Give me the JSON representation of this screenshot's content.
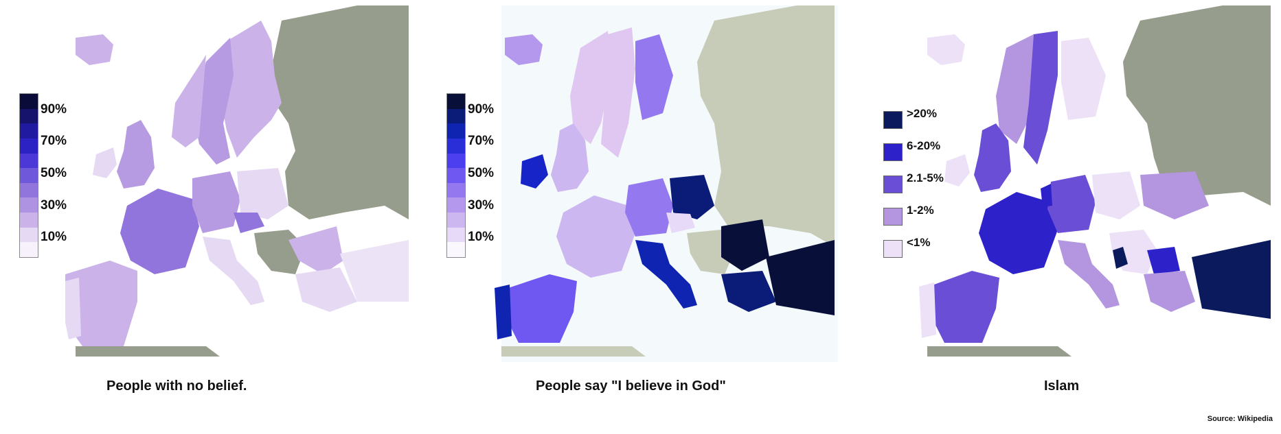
{
  "maps": [
    {
      "caption": "People with no belief.",
      "legend_type": "gradient",
      "legend_colors": [
        "#0b0b3a",
        "#15136b",
        "#1f1aa0",
        "#2c22c4",
        "#4b38d6",
        "#7058db",
        "#9274dd",
        "#ae93e2",
        "#cbb3ea",
        "#e6d9f4",
        "#f7f1fb"
      ],
      "ticks": [
        "90%",
        "70%",
        "50%",
        "30%",
        "10%"
      ]
    },
    {
      "caption": "People say \"I believe in God\"",
      "legend_type": "gradient",
      "legend_colors": [
        "#08103a",
        "#0b1c78",
        "#0f24b0",
        "#2a2ed9",
        "#4b3ff0",
        "#6f58f2",
        "#9478ef",
        "#b498ee",
        "#cdb7f1",
        "#e7d9f8",
        "#fbf7fe"
      ],
      "ticks": [
        "90%",
        "70%",
        "50%",
        "30%",
        "10%"
      ]
    },
    {
      "caption": "Islam",
      "legend_type": "boxes",
      "legend": [
        {
          "label": ">20%",
          "color": "#0b1a5c"
        },
        {
          "label": "6-20%",
          "color": "#2d22c9"
        },
        {
          "label": "2.1-5%",
          "color": "#6a4fd6"
        },
        {
          "label": "1-2%",
          "color": "#b496e0"
        },
        {
          "label": "<1%",
          "color": "#ece1f6"
        }
      ]
    }
  ],
  "source": "Source: Wikipedia",
  "colors": {
    "land_neutral_grey": "#979d8c",
    "land_neutral_light": "#c7ccb8",
    "sea_light": "#f4f9fc"
  }
}
